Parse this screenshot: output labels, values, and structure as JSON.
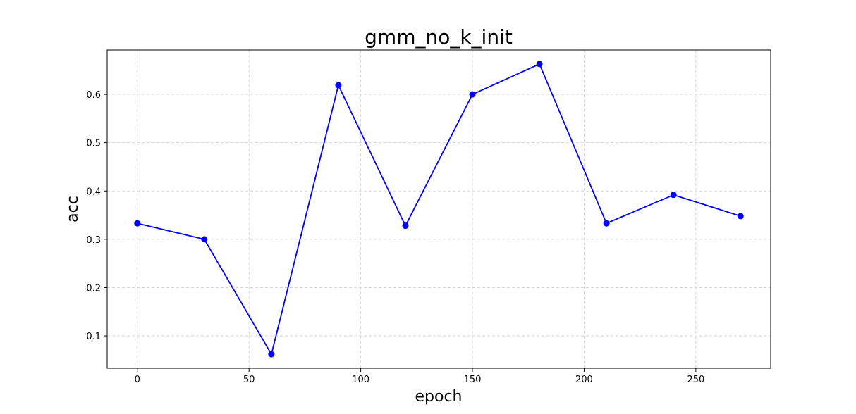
{
  "chart_data": {
    "type": "line",
    "title": "gmm_no_k_init",
    "xlabel": "epoch",
    "ylabel": "acc",
    "x": [
      0,
      30,
      60,
      90,
      120,
      150,
      180,
      210,
      240,
      270
    ],
    "series": [
      {
        "values": [
          0.333,
          0.3,
          0.062,
          0.619,
          0.328,
          0.6,
          0.663,
          0.333,
          0.392,
          0.348
        ]
      }
    ],
    "xlim": [
      -13.5,
      283.5
    ],
    "ylim": [
      0.033,
      0.692
    ],
    "xticks": [
      0,
      50,
      100,
      150,
      200,
      250
    ],
    "yticks": [
      0.1,
      0.2,
      0.3,
      0.4,
      0.5,
      0.6
    ],
    "grid": true,
    "grid_style": "dashed",
    "line_color": "#0000ff",
    "marker": "circle"
  }
}
